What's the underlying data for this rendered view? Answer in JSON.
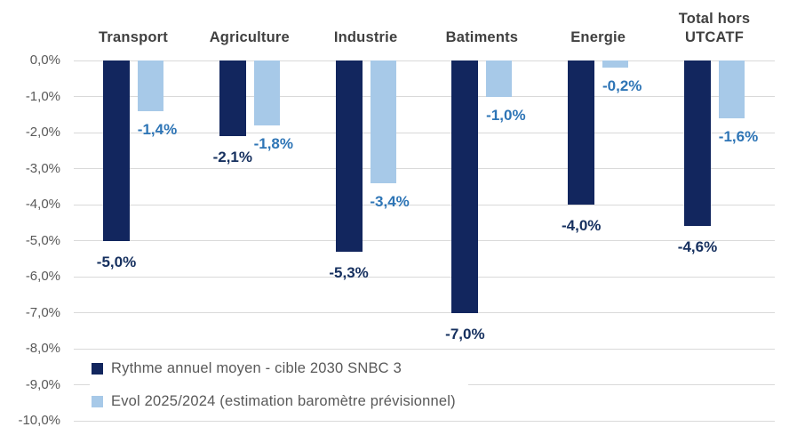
{
  "chart_data": {
    "type": "bar",
    "orientation": "vertical-negative",
    "categories": [
      "Transport",
      "Agriculture",
      "Industrie",
      "Batiments",
      "Energie",
      "Total hors UTCATF"
    ],
    "series": [
      {
        "name": "Rythme annuel moyen - cible 2030 SNBC 3",
        "color": "#12265E",
        "label_color": "#16305F",
        "values": [
          -5.0,
          -2.1,
          -5.3,
          -7.0,
          -4.0,
          -4.6
        ],
        "labels": [
          "-5,0%",
          "-2,1%",
          "-5,3%",
          "-7,0%",
          "-4,0%",
          "-4,6%"
        ]
      },
      {
        "name": "Evol 2025/2024 (estimation baromètre prévisionnel)",
        "color": "#A7C9E8",
        "label_color": "#2E75B6",
        "values": [
          -1.4,
          -1.8,
          -3.4,
          -1.0,
          -0.2,
          -1.6
        ],
        "labels": [
          "-1,4%",
          "-1,8%",
          "-3,4%",
          "-1,0%",
          "-0,2%",
          "-1,6%"
        ]
      }
    ],
    "y_axis": {
      "min": -10,
      "max": 0,
      "step": 1,
      "tick_labels": [
        "0,0%",
        "-1,0%",
        "-2,0%",
        "-3,0%",
        "-4,0%",
        "-5,0%",
        "-6,0%",
        "-7,0%",
        "-8,0%",
        "-9,0%",
        "-10,0%"
      ]
    },
    "grid": true,
    "legend_position": "bottom-left-inside",
    "colors": {
      "grid": "#D9D9D9",
      "axis_text": "#595959",
      "category_text": "#404040",
      "legend_text": "#595959",
      "background": "#FFFFFF"
    },
    "title": "",
    "xlabel": "",
    "ylabel": ""
  }
}
